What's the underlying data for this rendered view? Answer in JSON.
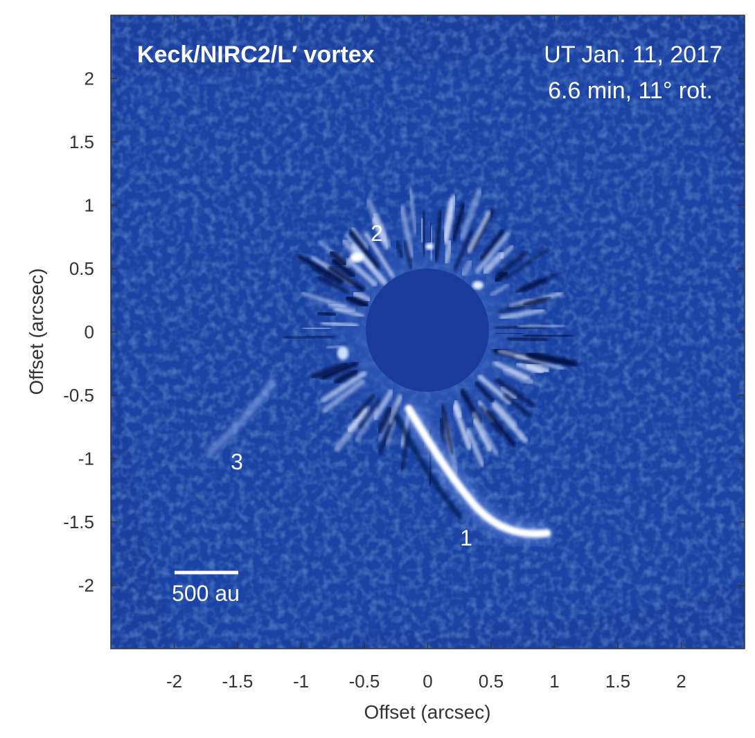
{
  "figure": {
    "title_left": "Keck/NIRC2/L′ vortex",
    "date": "UT Jan. 11, 2017",
    "exposure": "6.6 min, 11° rot.",
    "scalebar_label": "500 au",
    "scalebar_au": 500,
    "labels": [
      "1",
      "2",
      "3"
    ],
    "xlabel": "Offset (arcsec)",
    "ylabel": "Offset (arcsec)",
    "xticks": [
      "-2",
      "-1.5",
      "-1",
      "-0.5",
      "0",
      "0.5",
      "1",
      "1.5",
      "2"
    ],
    "yticks": [
      "2",
      "1.5",
      "1",
      "0.5",
      "0",
      "-0.5",
      "-1",
      "-1.5",
      "-2"
    ],
    "xlim": [
      -2.5,
      2.5
    ],
    "ylim": [
      -2.5,
      2.5
    ],
    "colors": {
      "background": "#1a3f9e",
      "mask": "#1b3b9a",
      "feature": "#ffffff",
      "axis": "#333333"
    }
  }
}
